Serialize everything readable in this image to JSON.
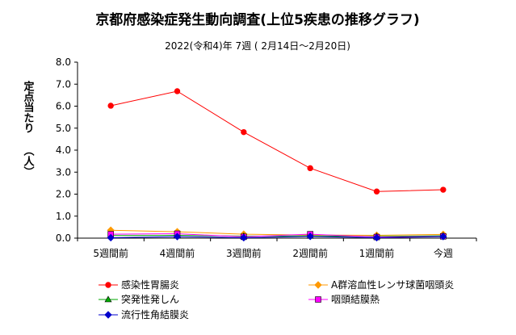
{
  "chart_data": {
    "type": "line",
    "title": "京都府感染症発生動向調査(上位5疾患の推移グラフ)",
    "subtitle": "2022(令和4)年 7週 ( 2月14日～2月20日)",
    "ylabel": "定点当たり （人）",
    "xlabel": "",
    "categories": [
      "5週間前",
      "4週間前",
      "3週間前",
      "2週間前",
      "1週間前",
      "今週"
    ],
    "ylim": [
      0,
      8
    ],
    "yticks": [
      "0.0",
      "1.0",
      "2.0",
      "3.0",
      "4.0",
      "5.0",
      "6.0",
      "7.0",
      "8.0"
    ],
    "grid": false,
    "legend_position": "bottom",
    "series": [
      {
        "name": "感染性胃腸炎",
        "color": "#ff0000",
        "marker": "circle",
        "values": [
          6.02,
          6.68,
          4.82,
          3.18,
          2.12,
          2.2
        ]
      },
      {
        "name": "A群溶血性レンサ球菌咽頭炎",
        "color": "#ff9900",
        "marker": "diamond",
        "values": [
          0.36,
          0.29,
          0.18,
          0.14,
          0.13,
          0.17
        ]
      },
      {
        "name": "突発性発しん",
        "color": "#00aa00",
        "marker": "triangle",
        "values": [
          0.12,
          0.13,
          0.09,
          0.1,
          0.08,
          0.11
        ]
      },
      {
        "name": "咽頭結膜熱",
        "color": "#ff00ff",
        "marker": "square",
        "values": [
          0.18,
          0.2,
          0.06,
          0.18,
          0.05,
          0.08
        ]
      },
      {
        "name": "流行性角結膜炎",
        "color": "#0000cc",
        "marker": "diamond",
        "values": [
          0.02,
          0.07,
          0.02,
          0.08,
          0.02,
          0.07
        ]
      }
    ]
  }
}
